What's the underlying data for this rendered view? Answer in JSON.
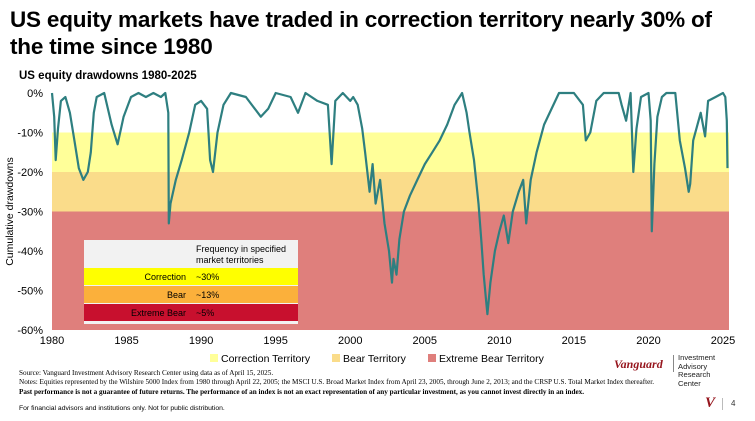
{
  "title": "US equity markets have traded in correction territory nearly 30% of the time since 1980",
  "subtitle": "US equity drawdowns 1980-2025",
  "chart_data": {
    "type": "area",
    "ylabel": "Cumulative drawdowns",
    "xlabel": "",
    "xlim": [
      1980,
      2025.4
    ],
    "ylim": [
      -60,
      0
    ],
    "x_ticks": [
      "1980",
      "1985",
      "1990",
      "1995",
      "2000",
      "2005",
      "2010",
      "2015",
      "2020",
      "2025"
    ],
    "y_ticks": [
      "0%",
      "-10%",
      "-20%",
      "-30%",
      "-40%",
      "-50%",
      "-60%"
    ],
    "bands": [
      {
        "name": "Correction Territory",
        "from": -10,
        "to": -20,
        "color": "#ffff99"
      },
      {
        "name": "Bear Territory",
        "from": -20,
        "to": -30,
        "color": "#fadc8a"
      },
      {
        "name": "Extreme Bear Territory",
        "from": -30,
        "to": -60,
        "color": "#df7f7c"
      }
    ],
    "series": [
      {
        "color": "#2e7f80",
        "x": [
          1980.0,
          1980.15,
          1980.25,
          1980.4,
          1980.6,
          1980.9,
          1981.2,
          1981.5,
          1981.8,
          1982.1,
          1982.4,
          1982.6,
          1982.8,
          1983.0,
          1983.5,
          1984.0,
          1984.4,
          1984.8,
          1985.3,
          1985.8,
          1986.3,
          1986.8,
          1987.3,
          1987.6,
          1987.8,
          1987.83,
          1987.95,
          1988.3,
          1988.7,
          1989.2,
          1989.6,
          1990.0,
          1990.4,
          1990.6,
          1990.8,
          1991.1,
          1991.5,
          1992.0,
          1993.0,
          1994.0,
          1994.5,
          1995.0,
          1996.0,
          1996.5,
          1997.0,
          1997.8,
          1998.5,
          1998.75,
          1999.0,
          1999.5,
          2000.0,
          2000.2,
          2000.5,
          2000.8,
          2001.0,
          2001.3,
          2001.5,
          2001.7,
          2002.0,
          2002.3,
          2002.6,
          2002.8,
          2002.9,
          2003.1,
          2003.3,
          2003.6,
          2004.0,
          2004.5,
          2005.0,
          2005.5,
          2006.0,
          2006.5,
          2007.0,
          2007.5,
          2007.8,
          2008.0,
          2008.3,
          2008.6,
          2008.8,
          2008.95,
          2009.1,
          2009.2,
          2009.4,
          2009.7,
          2010.0,
          2010.3,
          2010.6,
          2010.9,
          2011.3,
          2011.6,
          2011.8,
          2012.1,
          2012.5,
          2013.0,
          2014.0,
          2015.0,
          2015.6,
          2015.8,
          2016.1,
          2016.5,
          2017.0,
          2018.0,
          2018.2,
          2018.5,
          2018.8,
          2018.98,
          2019.2,
          2019.5,
          2020.0,
          2020.15,
          2020.22,
          2020.4,
          2020.6,
          2020.9,
          2021.2,
          2021.8,
          2022.1,
          2022.45,
          2022.7,
          2022.8,
          2023.0,
          2023.5,
          2023.8,
          2024.0,
          2024.5,
          2025.0,
          2025.15,
          2025.25,
          2025.3
        ],
        "values": [
          0,
          -6,
          -17,
          -9,
          -2,
          -1,
          -5,
          -12,
          -19,
          -22,
          -20,
          -15,
          -5,
          -1,
          0,
          -8,
          -13,
          -6,
          -1,
          0,
          -1,
          0,
          -1,
          0,
          -5,
          -33,
          -28,
          -22,
          -17,
          -10,
          -3,
          -2,
          -4,
          -17,
          -20,
          -10,
          -3,
          0,
          -1,
          -6,
          -4,
          0,
          -1,
          -5,
          0,
          -2,
          -3,
          -18,
          -2,
          0,
          -2,
          -1,
          -3,
          -9,
          -15,
          -25,
          -18,
          -28,
          -22,
          -33,
          -40,
          -48,
          -42,
          -46,
          -37,
          -30,
          -26,
          -22,
          -18,
          -15,
          -12,
          -8,
          -3,
          0,
          -5,
          -10,
          -17,
          -28,
          -38,
          -46,
          -52,
          -56,
          -48,
          -40,
          -35,
          -31,
          -38,
          -30,
          -25,
          -22,
          -33,
          -22,
          -15,
          -8,
          0,
          0,
          -3,
          -12,
          -10,
          -2,
          0,
          0,
          -3,
          -7,
          0,
          -20,
          -9,
          -1,
          0,
          -7,
          -35,
          -18,
          -6,
          -1,
          0,
          0,
          -12,
          -19,
          -25,
          -23,
          -12,
          -5,
          -11,
          -2,
          -1,
          0,
          -1,
          -7,
          -19
        ]
      }
    ]
  },
  "inset": {
    "header": "Frequency in specified market territories",
    "rows": [
      {
        "label": "Correction",
        "value": "~30%",
        "color": "#ffff00"
      },
      {
        "label": "Bear",
        "value": "~13%",
        "color": "#fbb03b"
      },
      {
        "label": "Extreme Bear",
        "value": "~5%",
        "color": "#c8102e"
      }
    ]
  },
  "source": {
    "line1": "Source: Vanguard Investment Advisory Research Center using data as of April 15, 2025.",
    "line2": "Notes: Equities represented by the Wilshire 5000 Index from 1980 through April 22, 2005; the MSCI U.S. Broad Market Index from April 23, 2005, through June 2, 2013; and the CRSP U.S. Total Market Index thereafter.",
    "line3": "Past performance is not a guarantee of future returns. The performance of an index is not an exact representation of any particular investment, as you cannot invest directly in an index."
  },
  "footer": "For financial advisors and institutions only. Not for public distribution.",
  "brand": {
    "name": "Vanguard",
    "center_line1": "Investment Advisory",
    "center_line2": "Research Center",
    "mark": "V",
    "color": "#96151d"
  },
  "page_number": "4"
}
